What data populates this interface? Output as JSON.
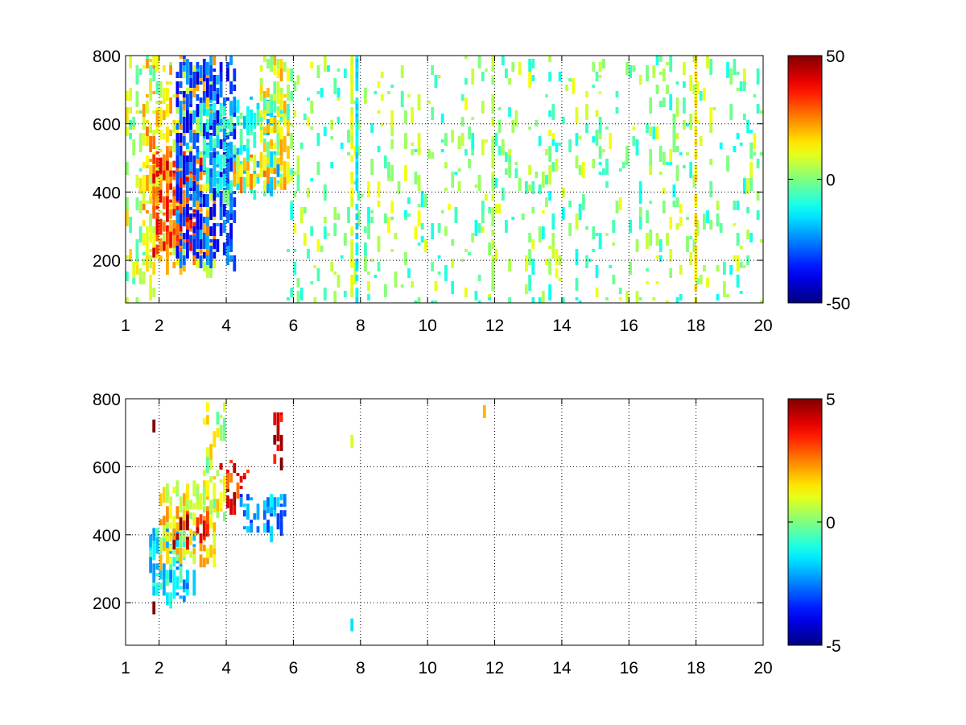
{
  "chart_data": [
    {
      "type": "heatmap",
      "title": "",
      "xlabel": "",
      "ylabel": "",
      "xlim": [
        1,
        20
      ],
      "ylim": [
        75,
        800
      ],
      "xticks": [
        1,
        2,
        4,
        6,
        8,
        10,
        12,
        14,
        16,
        18,
        20
      ],
      "yticks": [
        200,
        400,
        600,
        800
      ],
      "grid": true,
      "colormap": "jet",
      "colorbar": {
        "limits": [
          -50,
          50
        ],
        "ticks": [
          50,
          0,
          -50
        ]
      },
      "regions": [
        {
          "x": [
            1.0,
            1.9
          ],
          "y": [
            80,
            800
          ],
          "value": 5,
          "density": 0.18
        },
        {
          "x": [
            1.5,
            3.6
          ],
          "y": [
            190,
            800
          ],
          "value": 15,
          "density": 0.45
        },
        {
          "x": [
            1.8,
            3.2
          ],
          "y": [
            230,
            520
          ],
          "value": 32,
          "density": 0.7
        },
        {
          "x": [
            2.5,
            4.2
          ],
          "y": [
            210,
            800
          ],
          "value": -30,
          "density": 0.6
        },
        {
          "x": [
            3.2,
            5.6
          ],
          "y": [
            400,
            680
          ],
          "value": -12,
          "density": 0.45
        },
        {
          "x": [
            4.2,
            5.8
          ],
          "y": [
            420,
            510
          ],
          "value": 18,
          "density": 0.55
        },
        {
          "x": [
            5.0,
            5.8
          ],
          "y": [
            500,
            800
          ],
          "value": 10,
          "density": 0.45
        },
        {
          "x": [
            5.8,
            20.0
          ],
          "y": [
            80,
            800
          ],
          "value": 0,
          "density": 0.1
        }
      ],
      "stripes": [
        {
          "x": 7.7,
          "value": 10
        },
        {
          "x": 7.85,
          "value": -15
        },
        {
          "x": 11.9,
          "value": 5
        },
        {
          "x": 17.95,
          "value": 14
        }
      ]
    },
    {
      "type": "heatmap",
      "title": "",
      "xlabel": "",
      "ylabel": "",
      "xlim": [
        1,
        20
      ],
      "ylim": [
        75,
        800
      ],
      "xticks": [
        1,
        2,
        4,
        6,
        8,
        10,
        12,
        14,
        16,
        18,
        20
      ],
      "yticks": [
        200,
        400,
        600,
        800
      ],
      "grid": true,
      "colormap": "jet",
      "colorbar": {
        "limits": [
          -5,
          5
        ],
        "ticks": [
          5,
          0,
          -5
        ]
      },
      "regions": [
        {
          "x": [
            1.7,
            3.0
          ],
          "y": [
            220,
            420
          ],
          "value": -1.5,
          "density": 0.6
        },
        {
          "x": [
            2.0,
            3.6
          ],
          "y": [
            330,
            560
          ],
          "value": 1.2,
          "density": 0.55
        },
        {
          "x": [
            2.4,
            3.4
          ],
          "y": [
            380,
            470
          ],
          "value": 4.0,
          "density": 0.35
        },
        {
          "x": [
            3.3,
            4.0
          ],
          "y": [
            460,
            790
          ],
          "value": 0.8,
          "density": 0.45
        },
        {
          "x": [
            3.8,
            4.6
          ],
          "y": [
            480,
            620
          ],
          "value": 3.5,
          "density": 0.3
        },
        {
          "x": [
            4.4,
            5.7
          ],
          "y": [
            420,
            520
          ],
          "value": -2.5,
          "density": 0.55
        },
        {
          "x": [
            5.4,
            5.7
          ],
          "y": [
            620,
            760
          ],
          "value": 4.5,
          "density": 0.5
        }
      ],
      "points": [
        {
          "x": 7.75,
          "y": 675,
          "value": 0.8
        },
        {
          "x": 7.75,
          "y": 135,
          "value": -1.5
        },
        {
          "x": 11.7,
          "y": 762,
          "value": 2.0
        },
        {
          "x": 1.85,
          "y": 720,
          "value": 5.0
        },
        {
          "x": 1.85,
          "y": 185,
          "value": 5.0
        }
      ]
    }
  ]
}
